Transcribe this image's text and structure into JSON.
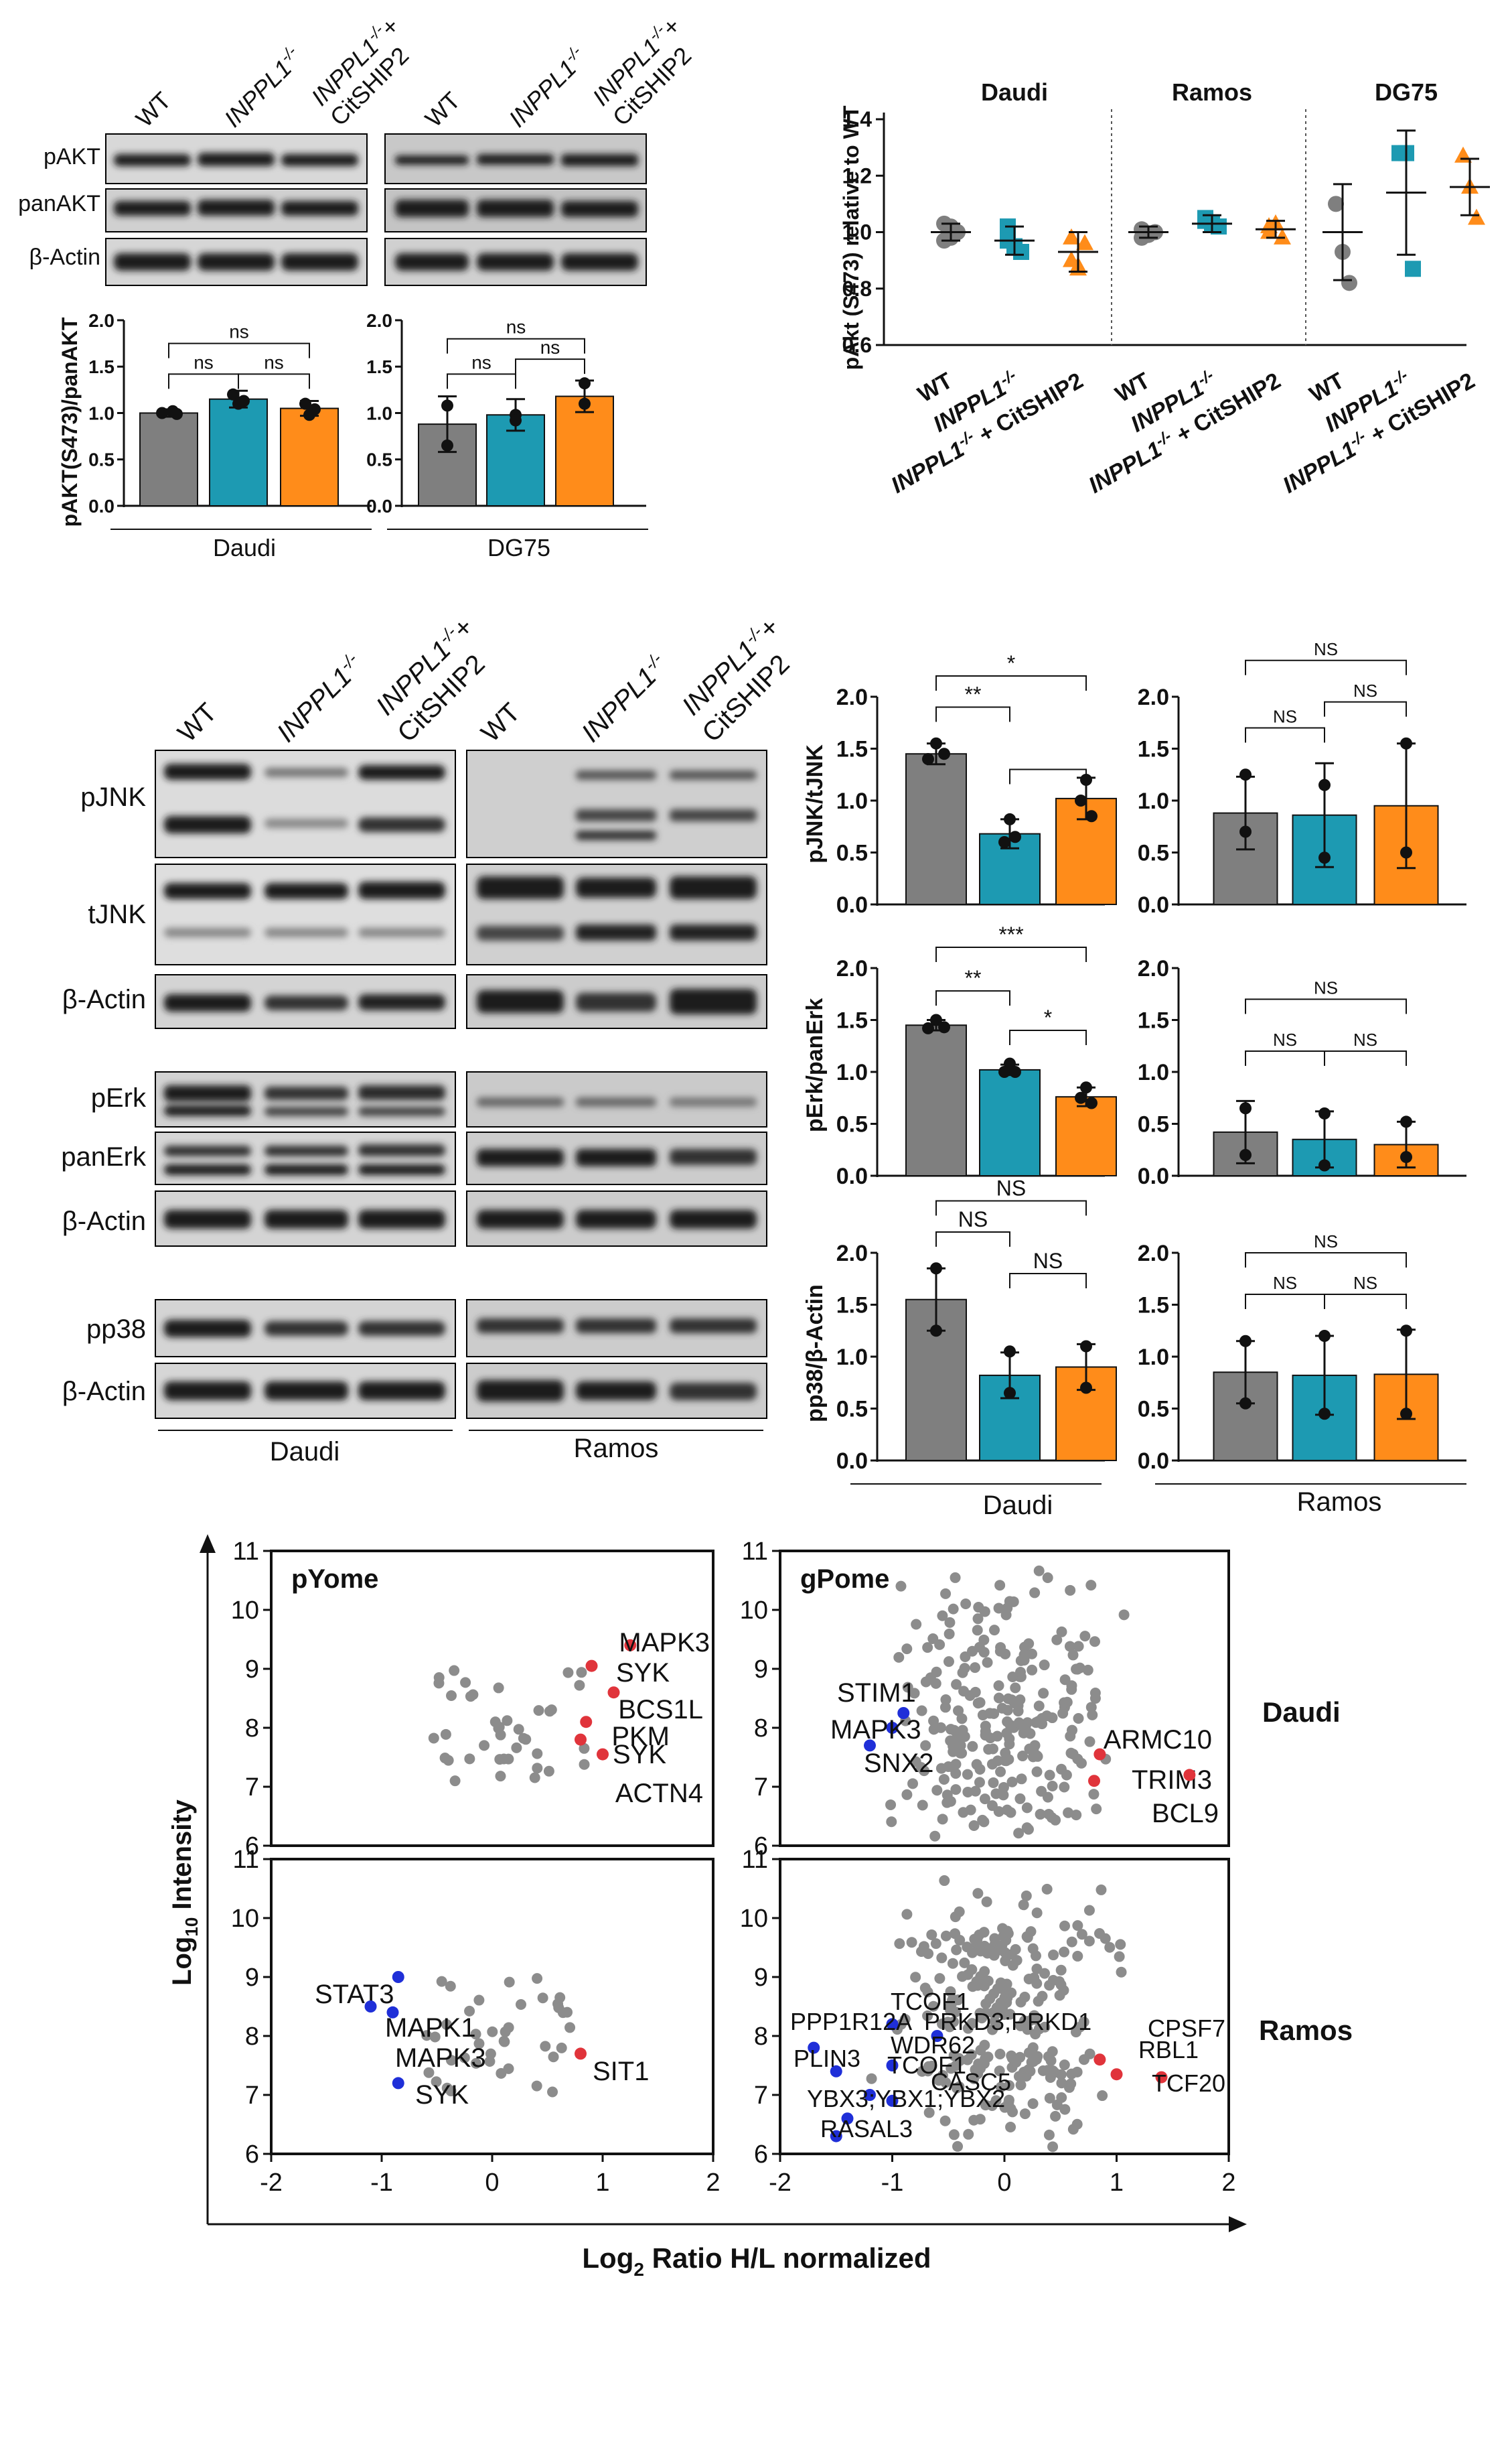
{
  "colors": {
    "wt": "#7f7f7f",
    "inppl": "#1d9ab2",
    "cit": "#ff8c1a",
    "red": "#e0343b",
    "blue": "#1f2fd8",
    "grey": "#8c8c8c"
  },
  "lanes": [
    "WT",
    "INPPL1",
    "INPPL1",
    "CitSHIP2"
  ],
  "inppl_sup": "-/-",
  "plus": "+",
  "panelA": {
    "blots": [
      "pAKT",
      "panAKT",
      "β-Actin"
    ],
    "ylabel": "pAKT(S473)/panAKT",
    "ticks": [
      "0.0",
      "0.5",
      "1.0",
      "1.5",
      "2.0"
    ],
    "groups": [
      "Daudi",
      "DG75"
    ],
    "sig": "ns"
  },
  "panelB": {
    "ylabel": "pAkt (S473) relative to WT",
    "ticks": [
      "0.6",
      "0.8",
      "1.0",
      "1.2",
      "1.4"
    ],
    "cells": [
      "Daudi",
      "Ramos",
      "DG75"
    ],
    "xlabels": [
      "WT",
      "INPPL1",
      "INPPL1",
      "+ CitSHIP2"
    ],
    "xsup": "-/-"
  },
  "panelC": {
    "blots": [
      "pJNK",
      "tJNK",
      "β-Actin",
      "pErk",
      "panErk",
      "β-Actin",
      "pp38",
      "β-Actin"
    ],
    "groups": [
      "Daudi",
      "Ramos"
    ],
    "ylabels": [
      "pJNK/tJNK",
      "pErk/panErk",
      "pp38/β-Actin"
    ],
    "ticks": [
      "0.0",
      "0.5",
      "1.0",
      "1.5",
      "2.0"
    ],
    "sigs": [
      "*",
      "**",
      "***",
      "NS"
    ]
  },
  "panelD": {
    "ylabel": "Log",
    "ylabel_sub": "10",
    "ylabel_end": " Intensity",
    "xlabel": "Log",
    "xlabel_sub": "2",
    "xlabel_end": " Ratio H/L normalized",
    "titles": [
      "pYome",
      "gPome"
    ],
    "rows": [
      "Daudi",
      "Ramos"
    ],
    "yticks": [
      "6",
      "7",
      "8",
      "9",
      "10",
      "11"
    ],
    "xticks": [
      "-2",
      "-1",
      "0",
      "1",
      "2"
    ],
    "labels_pyome_daudi": [
      "MAPK3",
      "SYK",
      "BCS1L",
      "PKM",
      "SYK",
      "ACTN4"
    ],
    "labels_gpome_daudi": [
      "STIM1",
      "MAPK3",
      "SNX2",
      "ARMC10",
      "TRIM3",
      "BCL9"
    ],
    "labels_pyome_ramos": [
      "STAT3",
      "MAPK1",
      "MAPK3",
      "SYK",
      "SIT1"
    ],
    "labels_gpome_ramos": [
      "TCOF1",
      "PPP1R12A",
      "PRKD3;PRKD1",
      "WDR62",
      "PLIN3",
      "TCOF1",
      "CASC5",
      "YBX3;YBX1;YBX2",
      "RASAL3",
      "CPSF7",
      "RBL1",
      "TCF20"
    ]
  },
  "chart_data": [
    {
      "type": "bar",
      "title": "Daudi",
      "ylabel": "pAKT(S473)/panAKT",
      "categories": [
        "WT",
        "INPPL1-/-",
        "INPPL1-/- + CitSHIP2"
      ],
      "values": [
        1.0,
        1.15,
        1.05
      ],
      "ylim": [
        0,
        2
      ]
    },
    {
      "type": "bar",
      "title": "DG75",
      "ylabel": "pAKT(S473)/panAKT",
      "categories": [
        "WT",
        "INPPL1-/-",
        "INPPL1-/- + CitSHIP2"
      ],
      "values": [
        0.88,
        0.98,
        1.18
      ],
      "ylim": [
        0,
        2
      ]
    },
    {
      "type": "scatter",
      "title": "pAkt (S473) relative to WT",
      "series": [
        {
          "name": "Daudi",
          "means": [
            1.0,
            0.97,
            0.93
          ]
        },
        {
          "name": "Ramos",
          "means": [
            1.0,
            1.03,
            1.01
          ]
        },
        {
          "name": "DG75",
          "means": [
            1.0,
            1.14,
            1.16
          ]
        }
      ],
      "ylim": [
        0.6,
        1.4
      ]
    },
    {
      "type": "bar",
      "title": "pJNK/tJNK Daudi",
      "values": [
        1.45,
        0.68,
        1.02
      ],
      "ylim": [
        0,
        2
      ]
    },
    {
      "type": "bar",
      "title": "pJNK/tJNK Ramos",
      "values": [
        0.88,
        0.86,
        0.95
      ],
      "ylim": [
        0,
        2
      ]
    },
    {
      "type": "bar",
      "title": "pErk/panErk Daudi",
      "values": [
        1.45,
        1.02,
        0.76
      ],
      "ylim": [
        0,
        2
      ]
    },
    {
      "type": "bar",
      "title": "pErk/panErk Ramos",
      "values": [
        0.42,
        0.35,
        0.3
      ],
      "ylim": [
        0,
        2
      ]
    },
    {
      "type": "bar",
      "title": "pp38/β-Actin Daudi",
      "values": [
        1.55,
        0.82,
        0.9
      ],
      "ylim": [
        0,
        2
      ]
    },
    {
      "type": "bar",
      "title": "pp38/β-Actin Ramos",
      "values": [
        0.85,
        0.82,
        0.83
      ],
      "ylim": [
        0,
        2
      ]
    }
  ]
}
